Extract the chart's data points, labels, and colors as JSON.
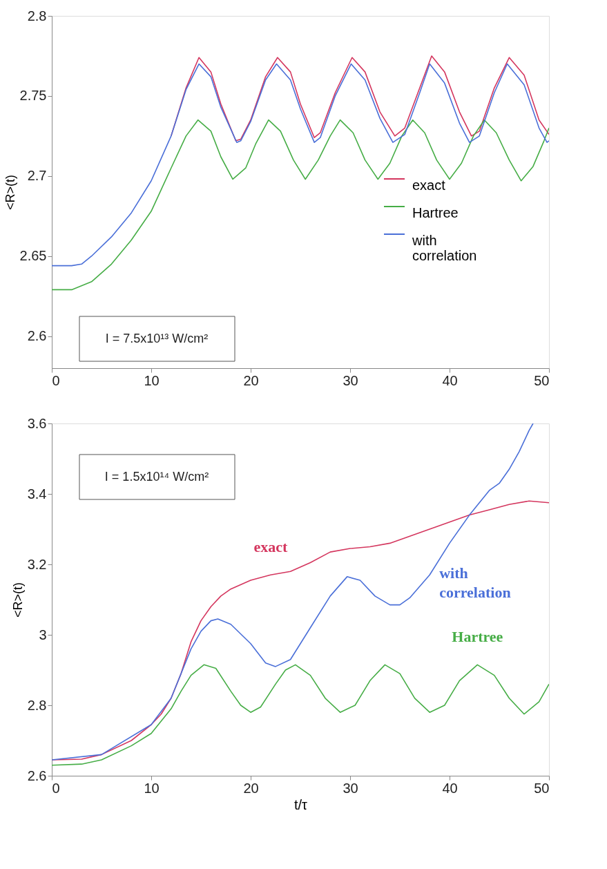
{
  "chart_data": [
    {
      "type": "line",
      "ylabel": "<R>(t)",
      "xlim": [
        0,
        50
      ],
      "xticks": [
        0,
        10,
        20,
        30,
        40,
        50
      ],
      "ylim": [
        2.58,
        2.8
      ],
      "yticks": [
        2.6,
        2.65,
        2.7,
        2.75,
        2.8
      ],
      "legend": "bottom right",
      "grid": false,
      "annotations": [
        "I = 7.5x10¹³ W/cm²"
      ],
      "series": [
        {
          "name": "exact",
          "color": "#d4365e",
          "x": [
            12,
            13.5,
            14.8,
            16,
            17,
            18.5,
            19,
            20,
            21.5,
            22.7,
            24,
            25,
            26.4,
            27,
            28.5,
            30.2,
            31.5,
            33,
            34.5,
            35.5,
            37,
            38.2,
            39.5,
            41,
            42.2,
            43,
            44.5,
            46,
            47.5,
            49,
            50
          ],
          "values": [
            2.725,
            2.755,
            2.774,
            2.765,
            2.745,
            2.722,
            2.723,
            2.735,
            2.762,
            2.774,
            2.765,
            2.745,
            2.724,
            2.727,
            2.752,
            2.774,
            2.765,
            2.74,
            2.725,
            2.73,
            2.755,
            2.775,
            2.765,
            2.74,
            2.725,
            2.728,
            2.755,
            2.774,
            2.763,
            2.735,
            2.726
          ]
        },
        {
          "name": "Hartree",
          "color": "#46ad46",
          "x": [
            0,
            2,
            4,
            6,
            8,
            10,
            12,
            13.5,
            14.7,
            16,
            17,
            18.2,
            19.5,
            20.5,
            21.8,
            23,
            24.3,
            25.5,
            26.8,
            28,
            29,
            30.3,
            31.5,
            32.8,
            34,
            35.2,
            36.3,
            37.5,
            38.7,
            40,
            41.2,
            42.4,
            43.5,
            44.7,
            46,
            47.2,
            48.4,
            49.5,
            50
          ],
          "values": [
            2.629,
            2.629,
            2.634,
            2.645,
            2.66,
            2.678,
            2.705,
            2.725,
            2.735,
            2.728,
            2.712,
            2.698,
            2.705,
            2.72,
            2.735,
            2.728,
            2.71,
            2.698,
            2.71,
            2.725,
            2.735,
            2.727,
            2.71,
            2.698,
            2.708,
            2.725,
            2.735,
            2.727,
            2.71,
            2.698,
            2.708,
            2.725,
            2.735,
            2.727,
            2.71,
            2.697,
            2.706,
            2.722,
            2.73
          ]
        },
        {
          "name": "with correlation",
          "color": "#4a6fd8",
          "x": [
            0,
            2,
            3,
            4,
            6,
            8,
            10,
            12,
            13.5,
            14.8,
            16,
            17,
            18.6,
            19,
            20,
            21.5,
            22.6,
            24,
            25,
            26.4,
            27,
            28.5,
            30.1,
            31.5,
            33,
            34.3,
            35.5,
            37,
            38,
            39.5,
            41,
            42,
            43,
            44.5,
            45.8,
            47.5,
            49,
            49.8,
            50
          ],
          "values": [
            2.644,
            2.644,
            2.645,
            2.65,
            2.662,
            2.677,
            2.697,
            2.725,
            2.754,
            2.77,
            2.762,
            2.743,
            2.721,
            2.722,
            2.734,
            2.76,
            2.77,
            2.76,
            2.742,
            2.721,
            2.724,
            2.75,
            2.77,
            2.76,
            2.736,
            2.721,
            2.726,
            2.752,
            2.77,
            2.758,
            2.733,
            2.721,
            2.725,
            2.752,
            2.77,
            2.757,
            2.73,
            2.721,
            2.722
          ]
        }
      ]
    },
    {
      "type": "line",
      "xlabel": "t/τ",
      "ylabel": "<R>(t)",
      "xlim": [
        0,
        50
      ],
      "xticks": [
        0,
        10,
        20,
        30,
        40,
        50
      ],
      "ylim": [
        2.6,
        3.6
      ],
      "yticks": [
        2.6,
        2.8,
        3,
        3.2,
        3.4,
        3.6
      ],
      "grid": false,
      "annotations": [
        {
          "text": "exact",
          "x": 22,
          "y": 3.17
        },
        {
          "text": "Hartree",
          "x": 42.8,
          "y": 2.915
        },
        {
          "text": "with correlation",
          "x": 38,
          "y": 3.17
        },
        "I = 1.5x10¹⁴ W/cm²"
      ],
      "series": [
        {
          "color": "#d4365e",
          "x": [
            0,
            3,
            5,
            8,
            10,
            11,
            12,
            13,
            14,
            15,
            16,
            17,
            18,
            20,
            22,
            24,
            26,
            28,
            30,
            32,
            34,
            36,
            38,
            40,
            42,
            44,
            46,
            48,
            50
          ],
          "values": [
            2.645,
            2.647,
            2.66,
            2.7,
            2.745,
            2.775,
            2.82,
            2.89,
            2.98,
            3.04,
            3.08,
            3.11,
            3.13,
            3.155,
            3.17,
            3.18,
            3.205,
            3.235,
            3.245,
            3.25,
            3.26,
            3.28,
            3.3,
            3.32,
            3.34,
            3.355,
            3.37,
            3.38,
            3.375
          ]
        },
        {
          "color": "#46ad46",
          "x": [
            0,
            3,
            5,
            8,
            10,
            12,
            13,
            14,
            15.3,
            16.5,
            18,
            19,
            20,
            21,
            22.5,
            23.5,
            24.5,
            26,
            27.5,
            29,
            30.5,
            32,
            33.5,
            35,
            36.5,
            38,
            39.5,
            41,
            42.8,
            44.5,
            46,
            47.5,
            49,
            50
          ],
          "values": [
            2.63,
            2.633,
            2.645,
            2.685,
            2.72,
            2.79,
            2.84,
            2.885,
            2.915,
            2.905,
            2.84,
            2.8,
            2.78,
            2.795,
            2.86,
            2.9,
            2.915,
            2.885,
            2.82,
            2.78,
            2.8,
            2.87,
            2.915,
            2.89,
            2.82,
            2.78,
            2.8,
            2.87,
            2.915,
            2.885,
            2.82,
            2.775,
            2.81,
            2.86
          ]
        },
        {
          "color": "#4a6fd8",
          "x": [
            0,
            5,
            10,
            12,
            13,
            14,
            15,
            16,
            16.7,
            18,
            20,
            21.5,
            22.5,
            24,
            26,
            28,
            29.7,
            31,
            32.5,
            34,
            35,
            36,
            38,
            40,
            42,
            44,
            45,
            46,
            47,
            48,
            48.4
          ],
          "values": [
            2.645,
            2.66,
            2.745,
            2.82,
            2.89,
            2.96,
            3.01,
            3.04,
            3.045,
            3.03,
            2.975,
            2.92,
            2.91,
            2.93,
            3.02,
            3.11,
            3.165,
            3.155,
            3.11,
            3.085,
            3.085,
            3.105,
            3.17,
            3.26,
            3.34,
            3.41,
            3.43,
            3.47,
            3.52,
            3.58,
            3.6
          ]
        }
      ]
    }
  ]
}
